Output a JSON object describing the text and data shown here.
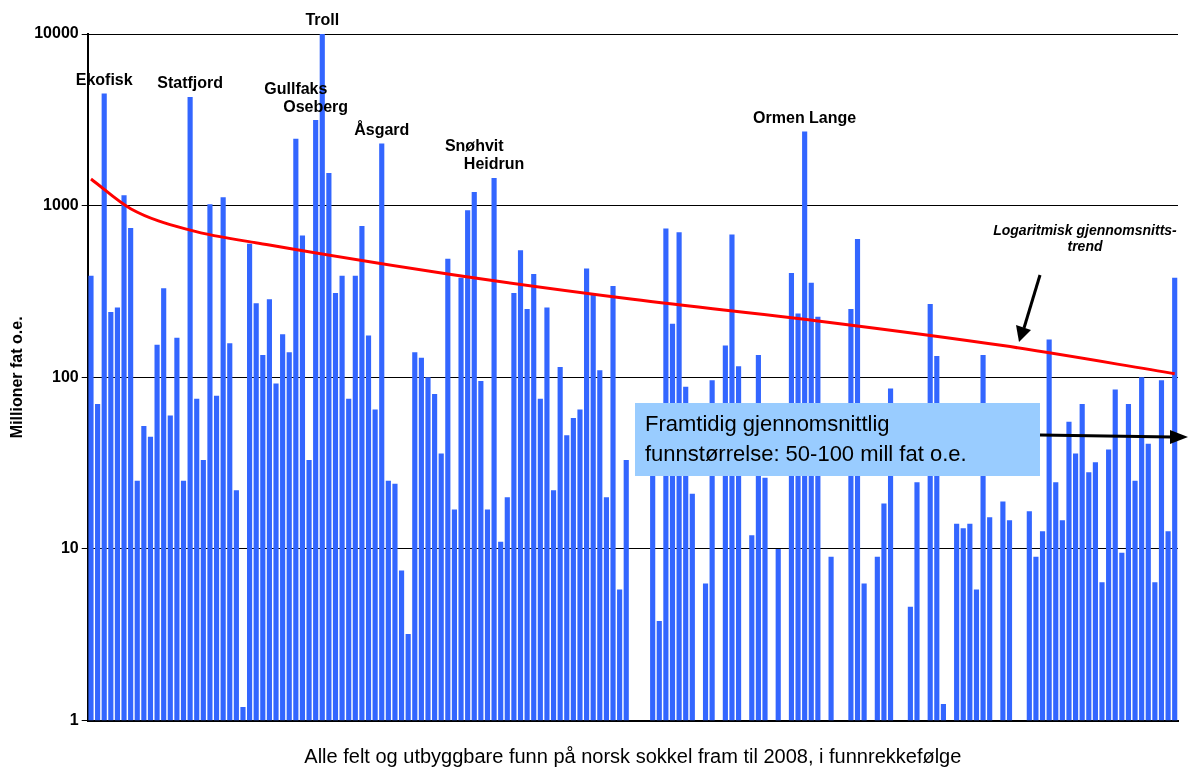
{
  "chart_data": {
    "type": "bar",
    "xlabel": "Alle felt og utbyggbare funn på norsk sokkel fram til 2008, i funnrekkefølge",
    "ylabel": "Millioner fat o.e.",
    "categories": [
      null,
      null,
      null,
      null,
      null,
      null,
      null,
      null,
      null,
      null,
      null,
      null,
      null,
      null,
      null,
      null,
      null,
      null,
      null,
      null,
      null,
      null,
      null,
      null,
      null,
      null,
      null,
      null,
      null,
      null,
      null,
      null,
      null,
      null,
      null,
      null,
      null,
      null,
      null,
      null,
      null,
      null,
      null,
      null,
      null,
      null,
      null,
      null,
      null,
      null,
      null,
      null,
      null,
      null,
      null,
      null,
      null,
      null,
      null,
      null,
      null,
      null,
      null,
      null,
      null,
      null,
      null,
      null,
      null,
      null,
      null,
      null,
      null,
      null,
      null,
      null,
      null,
      null,
      null,
      null,
      null,
      null,
      null,
      null,
      null,
      null,
      null,
      null,
      null,
      null,
      null,
      null,
      null,
      null,
      null,
      null,
      null,
      null,
      null,
      null,
      null,
      null,
      null,
      null,
      null,
      null,
      null,
      null,
      null,
      null,
      null,
      null,
      null,
      null,
      null,
      null,
      null,
      null,
      null,
      null,
      null,
      null,
      null,
      null,
      null,
      null,
      null,
      null,
      null,
      null,
      null,
      null,
      null,
      null,
      null,
      null,
      null,
      null,
      null,
      null,
      null,
      null,
      null,
      null,
      null,
      null,
      null,
      null,
      null,
      null,
      null,
      null,
      null,
      null,
      null,
      null,
      null,
      null,
      null,
      null,
      null,
      null,
      null,
      null,
      null
    ],
    "series": [
      {
        "color": "#3366ff",
        "values": [
          390,
          70,
          4500,
          240,
          255,
          1150,
          740,
          25,
          52,
          45,
          155,
          330,
          60,
          170,
          25,
          4300,
          75,
          33,
          1020,
          78,
          1120,
          158,
          22,
          1.2,
          600,
          270,
          135,
          285,
          92,
          178,
          140,
          2450,
          670,
          33,
          3150,
          10000,
          1550,
          310,
          390,
          75,
          390,
          760,
          175,
          65,
          2300,
          25,
          24,
          7.5,
          3.2,
          140,
          130,
          100,
          80,
          36,
          490,
          17,
          380,
          940,
          1200,
          95,
          17,
          1450,
          11,
          20,
          310,
          550,
          250,
          400,
          75,
          255,
          22,
          115,
          46,
          58,
          65,
          430,
          310,
          110,
          20,
          340,
          5.8,
          33,
          null,
          null,
          null,
          27,
          3.8,
          735,
          205,
          700,
          88,
          21,
          null,
          6.3,
          96,
          null,
          153,
          680,
          116,
          null,
          12,
          135,
          26,
          null,
          10,
          null,
          405,
          235,
          2700,
          355,
          225,
          null,
          9,
          null,
          null,
          250,
          640,
          6.3,
          null,
          9,
          18.4,
          86,
          null,
          null,
          4.6,
          24.5,
          null,
          267,
          133,
          1.25,
          null,
          14,
          13.2,
          14,
          5.8,
          135,
          15.3,
          null,
          18.9,
          14.7,
          null,
          null,
          16.6,
          9,
          12.7,
          166,
          24.5,
          14.7,
          55,
          36,
          70,
          28,
          32,
          6.4,
          38,
          85,
          9.5,
          70,
          25,
          100,
          41,
          6.4,
          96,
          12.7,
          380
        ],
        "value_labels": [
          null,
          null,
          "Ekofisk",
          null,
          null,
          null,
          null,
          null,
          null,
          null,
          null,
          null,
          null,
          null,
          null,
          "Statfjord",
          null,
          null,
          null,
          null,
          null,
          null,
          null,
          null,
          null,
          null,
          null,
          null,
          null,
          null,
          null,
          "Gullfaks",
          null,
          null,
          "Oseberg",
          "Troll",
          null,
          null,
          null,
          null,
          null,
          null,
          null,
          null,
          "Åsgard",
          null,
          null,
          null,
          null,
          null,
          null,
          null,
          null,
          null,
          null,
          null,
          null,
          null,
          "Snøhvit",
          null,
          null,
          "Heidrun",
          null,
          null,
          null,
          null,
          null,
          null,
          null,
          null,
          null,
          null,
          null,
          null,
          null,
          null,
          null,
          null,
          null,
          null,
          null,
          null,
          null,
          null,
          null,
          null,
          null,
          null,
          null,
          null,
          null,
          null,
          null,
          null,
          null,
          null,
          null,
          null,
          null,
          null,
          null,
          null,
          null,
          null,
          null,
          null,
          null,
          null,
          "Ormen Lange",
          null,
          null,
          null,
          null,
          null,
          null,
          null,
          null,
          null,
          null,
          null,
          null,
          null,
          null,
          null,
          null,
          null,
          null,
          null,
          null,
          null,
          null,
          null,
          null,
          null,
          null,
          null,
          null,
          null,
          null,
          null,
          null,
          null,
          null,
          null,
          null,
          null,
          null,
          null,
          null,
          null,
          null,
          null,
          null,
          null,
          null,
          null,
          null,
          null,
          null,
          null,
          null,
          null,
          null,
          null,
          null
        ]
      },
      {
        "type": "line",
        "color": "#ff0000",
        "values": [
          1430,
          null,
          null,
          null,
          null,
          null,
          960,
          null,
          null,
          null,
          null,
          null,
          null,
          null,
          null,
          720,
          null,
          null,
          null,
          null,
          null,
          null,
          null,
          null,
          null,
          null,
          null,
          590,
          null,
          null,
          null,
          null,
          null,
          null,
          null,
          null,
          null,
          null,
          null,
          null,
          null,
          null,
          null,
          null,
          null,
          null,
          null,
          null,
          null,
          null,
          null,
          null,
          null,
          null,
          400,
          null,
          null,
          null,
          null,
          null,
          null,
          null,
          null,
          null,
          null,
          null,
          null,
          null,
          null,
          null,
          null,
          null,
          null,
          null,
          null,
          null,
          null,
          null,
          null,
          null,
          null,
          null,
          285,
          null,
          null,
          null,
          null,
          null,
          null,
          null,
          null,
          null,
          null,
          null,
          null,
          null,
          null,
          null,
          null,
          null,
          null,
          null,
          null,
          null,
          null,
          null,
          null,
          null,
          null,
          null,
          213,
          null,
          null,
          null,
          null,
          null,
          null,
          null,
          null,
          null,
          null,
          null,
          null,
          null,
          null,
          null,
          null,
          null,
          null,
          null,
          null,
          null,
          null,
          null,
          null,
          null,
          null,
          null,
          153,
          null,
          null,
          null,
          null,
          null,
          null,
          null,
          null,
          null,
          null,
          null,
          null,
          null,
          null,
          null,
          null,
          null,
          null,
          null,
          null,
          null,
          null,
          null,
          null,
          null,
          105
        ]
      }
    ],
    "annotations": [
      "Logaritmisk gjennomsnitts-trend",
      "Framtidig gjennomsnittlig funnstørrelse: 50-100 mill fat o.e."
    ],
    "log": "y",
    "ylim": [
      1,
      10000
    ],
    "yticks": [
      1,
      10,
      100,
      1000,
      10000
    ],
    "grid": "y",
    "legend": false,
    "marker": "none",
    "line_style": "solid"
  }
}
